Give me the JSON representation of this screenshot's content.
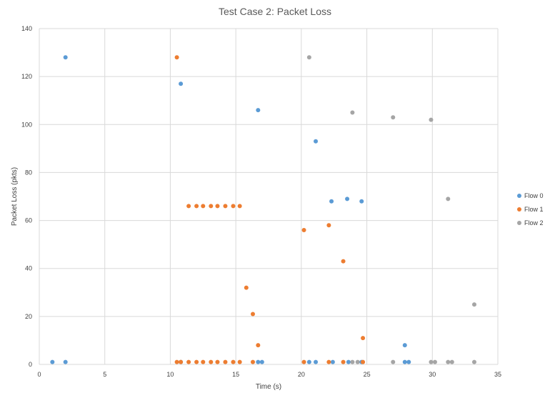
{
  "chart_data": {
    "type": "scatter",
    "title": "Test Case 2: Packet Loss",
    "xlabel": "Time (s)",
    "ylabel": "Packet Loss (pkts)",
    "xlim": [
      0,
      35
    ],
    "ylim": [
      0,
      140
    ],
    "xticks": [
      0,
      5,
      10,
      15,
      20,
      25,
      30,
      35
    ],
    "yticks": [
      0,
      20,
      40,
      60,
      80,
      100,
      120,
      140
    ],
    "grid": true,
    "legend_position": "right",
    "series": [
      {
        "name": "Flow 0",
        "color": "#5b9bd5",
        "points": [
          [
            1.0,
            1
          ],
          [
            2.0,
            128
          ],
          [
            2.0,
            1
          ],
          [
            10.8,
            117
          ],
          [
            10.8,
            1
          ],
          [
            16.7,
            106
          ],
          [
            16.7,
            1
          ],
          [
            17.0,
            1
          ],
          [
            20.6,
            1
          ],
          [
            21.1,
            93
          ],
          [
            21.1,
            1
          ],
          [
            22.3,
            68
          ],
          [
            22.4,
            1
          ],
          [
            23.5,
            69
          ],
          [
            23.6,
            1
          ],
          [
            24.6,
            68
          ],
          [
            24.6,
            1
          ],
          [
            27.9,
            8
          ],
          [
            27.9,
            1
          ],
          [
            28.2,
            1
          ]
        ]
      },
      {
        "name": "Flow 1",
        "color": "#ed7d31",
        "points": [
          [
            10.5,
            128
          ],
          [
            10.5,
            1
          ],
          [
            10.8,
            1
          ],
          [
            11.4,
            66
          ],
          [
            11.4,
            1
          ],
          [
            12.0,
            66
          ],
          [
            12.0,
            1
          ],
          [
            12.5,
            66
          ],
          [
            12.5,
            1
          ],
          [
            13.1,
            66
          ],
          [
            13.1,
            1
          ],
          [
            13.6,
            66
          ],
          [
            13.6,
            1
          ],
          [
            14.2,
            66
          ],
          [
            14.2,
            1
          ],
          [
            14.8,
            66
          ],
          [
            14.8,
            1
          ],
          [
            15.3,
            66
          ],
          [
            15.3,
            1
          ],
          [
            15.8,
            32
          ],
          [
            16.3,
            21
          ],
          [
            16.3,
            1
          ],
          [
            16.7,
            8
          ],
          [
            20.2,
            56
          ],
          [
            20.2,
            1
          ],
          [
            22.1,
            58
          ],
          [
            22.1,
            1
          ],
          [
            23.2,
            43
          ],
          [
            23.2,
            1
          ],
          [
            24.7,
            11
          ],
          [
            24.7,
            1
          ]
        ]
      },
      {
        "name": "Flow 2",
        "color": "#a5a5a5",
        "points": [
          [
            20.6,
            128
          ],
          [
            23.9,
            105
          ],
          [
            23.9,
            1
          ],
          [
            24.3,
            1
          ],
          [
            27.0,
            103
          ],
          [
            27.0,
            1
          ],
          [
            29.9,
            102
          ],
          [
            29.9,
            1
          ],
          [
            30.2,
            1
          ],
          [
            31.2,
            69
          ],
          [
            31.2,
            1
          ],
          [
            31.5,
            1
          ],
          [
            33.2,
            25
          ],
          [
            33.2,
            1
          ]
        ]
      }
    ]
  }
}
